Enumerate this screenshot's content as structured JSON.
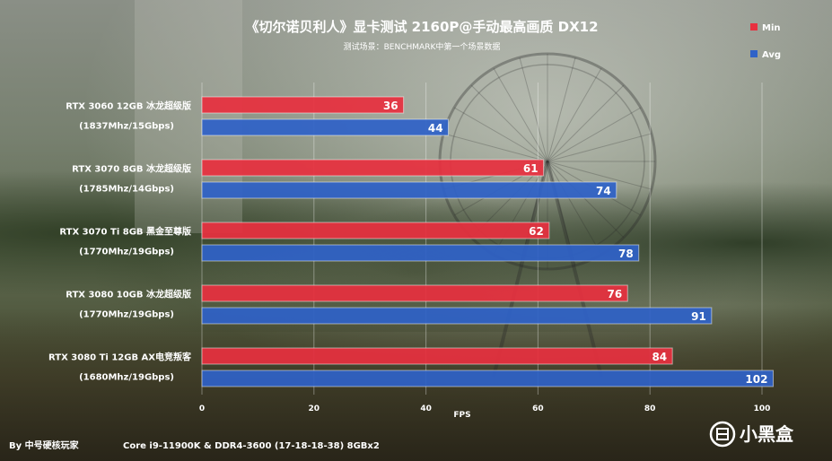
{
  "chart_data": {
    "type": "bar",
    "orientation": "horizontal",
    "title": "《切尔诺贝利人》显卡测试 2160P@手动最高画质 DX12",
    "subtitle": "测试场景：BENCHMARK中第一个场景数据",
    "xlabel": "FPS",
    "xlim": [
      0,
      100
    ],
    "xticks": [
      0,
      20,
      40,
      60,
      80,
      100
    ],
    "grid": true,
    "legend_position": "top-right",
    "categories": [
      [
        "RTX 3060 12GB 冰龙超级版",
        "(1837Mhz/15Gbps)"
      ],
      [
        "RTX 3070 8GB 冰龙超级版",
        "(1785Mhz/14Gbps)"
      ],
      [
        "RTX 3070 Ti 8GB 黑金至尊版",
        "(1770Mhz/19Gbps)"
      ],
      [
        "RTX 3080 10GB 冰龙超级版",
        "(1770Mhz/19Gbps)"
      ],
      [
        "RTX 3080 Ti 12GB AX电竞叛客",
        "(1680Mhz/19Gbps)"
      ]
    ],
    "series": [
      {
        "name": "Min",
        "color": "#e8303f",
        "values": [
          36,
          61,
          62,
          76,
          84
        ]
      },
      {
        "name": "Avg",
        "color": "#2f62c8",
        "values": [
          44,
          74,
          78,
          91,
          102
        ]
      }
    ]
  },
  "footer": {
    "author": "By 中号硬核玩家",
    "system": "Core i9-11900K & DDR4-3600  (17-18-18-38) 8GBx2"
  },
  "watermark": {
    "logo": "box-logo-icon",
    "text": "小黑盒"
  }
}
